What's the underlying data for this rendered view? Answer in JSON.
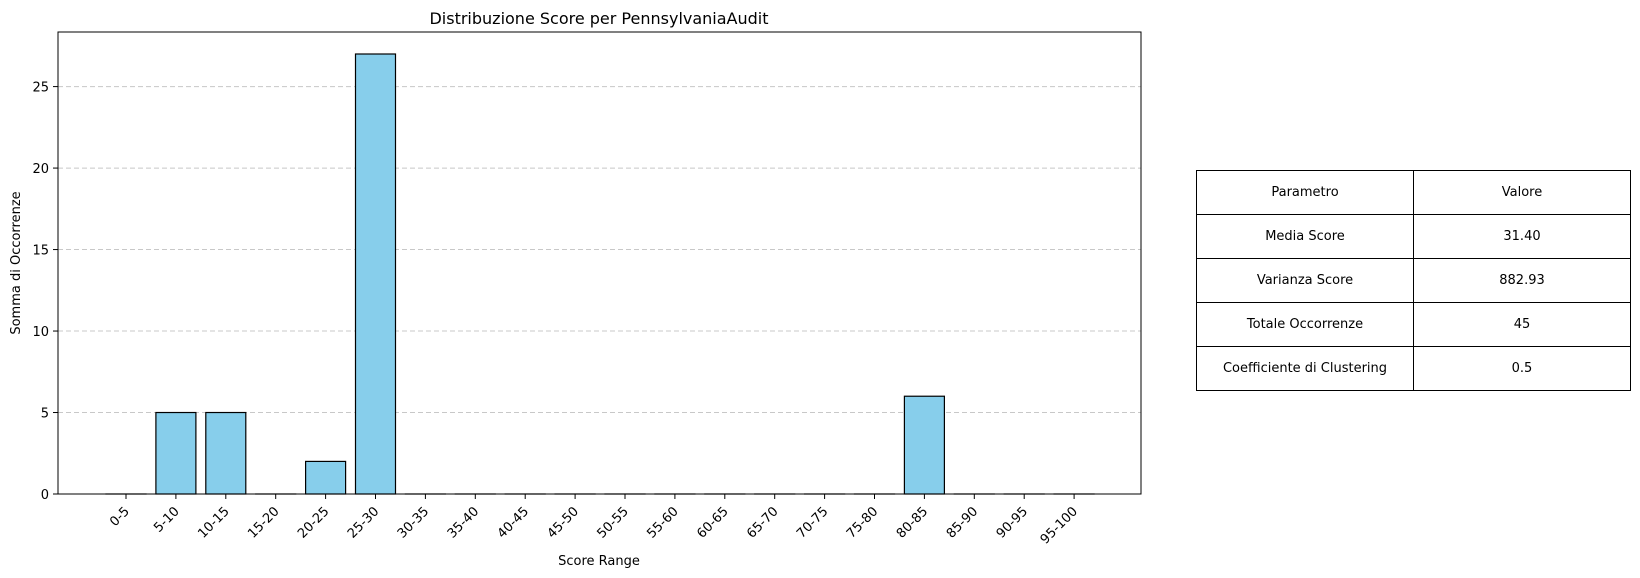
{
  "chart_data": {
    "type": "bar",
    "title": "Distribuzione Score per PennsylvaniaAudit",
    "xlabel": "Score Range",
    "ylabel": "Somma di Occorrenze",
    "categories": [
      "0-5",
      "5-10",
      "10-15",
      "15-20",
      "20-25",
      "25-30",
      "30-35",
      "35-40",
      "40-45",
      "45-50",
      "50-55",
      "55-60",
      "60-65",
      "65-70",
      "70-75",
      "75-80",
      "80-85",
      "85-90",
      "90-95",
      "95-100"
    ],
    "values": [
      0,
      5,
      5,
      0,
      2,
      27,
      0,
      0,
      0,
      0,
      0,
      0,
      0,
      0,
      0,
      0,
      6,
      0,
      0,
      0
    ],
    "ylim": [
      0,
      28.35
    ],
    "yticks": [
      0,
      5,
      10,
      15,
      20,
      25
    ],
    "grid": "y-dashed",
    "bar_color": "#87ceeb",
    "edge_color": "#000000"
  },
  "table": {
    "header": [
      "Parametro",
      "Valore"
    ],
    "rows": [
      [
        "Media Score",
        "31.40"
      ],
      [
        "Varianza Score",
        "882.93"
      ],
      [
        "Totale Occorrenze",
        "45"
      ],
      [
        "Coefficiente di Clustering",
        "0.5"
      ]
    ]
  }
}
